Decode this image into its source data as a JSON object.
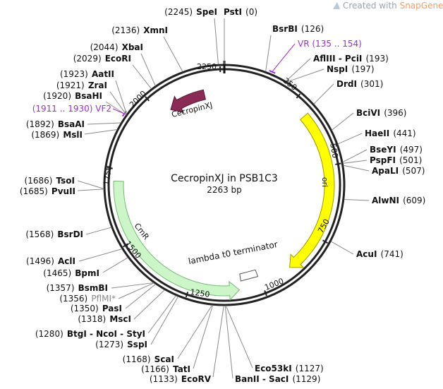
{
  "plasmid": {
    "name": "CecropinXJ in PSB1C3",
    "size_label": "2263 bp",
    "length": 2263
  },
  "watermark": {
    "prefix": "Created with ",
    "brand": "SnapGene™"
  },
  "colors": {
    "backbone": "#222222",
    "cecropin": "#8b2a55",
    "ori": "#ffff00",
    "cmr": "#ccf5c8",
    "terminator": "#ffffff",
    "primer": "#9b30d0",
    "brand": "#ff7f3f"
  },
  "features": [
    {
      "name": "CecropinXJ",
      "start": 2185,
      "end": 2040,
      "type": "cds"
    },
    {
      "name": "ori",
      "start": 310,
      "end": 890,
      "type": "rep_origin"
    },
    {
      "name": "CmR",
      "start": 1710,
      "end": 1080,
      "type": "cds"
    },
    {
      "name": "lambda t0 terminator",
      "start": 1005,
      "end": 1070,
      "type": "terminator"
    }
  ],
  "primers": [
    {
      "name": "VR",
      "range": "(135 .. 154)"
    },
    {
      "name": "VF2",
      "range": "(1911 .. 1930)"
    }
  ],
  "ticks": [
    {
      "label": "250",
      "pos": 250
    },
    {
      "label": "500",
      "pos": 500
    },
    {
      "label": "750",
      "pos": 750
    },
    {
      "label": "1000",
      "pos": 1000
    },
    {
      "label": "1250",
      "pos": 1250
    },
    {
      "label": "1500",
      "pos": 1500
    },
    {
      "label": "1750",
      "pos": 1750
    },
    {
      "label": "2000",
      "pos": 2000
    },
    {
      "label": "2250",
      "pos": 2250
    }
  ],
  "sites": [
    {
      "name": "PstI",
      "num": "(0)",
      "pos": 0
    },
    {
      "name": "SpeI",
      "num": "(2245)",
      "pos": 2245
    },
    {
      "name": "XmnI",
      "num": "(2136)",
      "pos": 2136
    },
    {
      "name": "XbaI",
      "num": "(2044)",
      "pos": 2044
    },
    {
      "name": "EcoRI",
      "num": "(2029)",
      "pos": 2029
    },
    {
      "name": "AatII",
      "num": "(1923)",
      "pos": 1923
    },
    {
      "name": "ZraI",
      "num": "(1921)",
      "pos": 1921
    },
    {
      "name": "BsaHI",
      "num": "(1920)",
      "pos": 1920
    },
    {
      "name": "BsaAI",
      "num": "(1892)",
      "pos": 1892
    },
    {
      "name": "MslI",
      "num": "(1869)",
      "pos": 1869
    },
    {
      "name": "TsoI",
      "num": "(1686)",
      "pos": 1686
    },
    {
      "name": "PvuII",
      "num": "(1685)",
      "pos": 1685
    },
    {
      "name": "BsrDI",
      "num": "(1568)",
      "pos": 1568
    },
    {
      "name": "AclI",
      "num": "(1496)",
      "pos": 1496
    },
    {
      "name": "BpmI",
      "num": "(1465)",
      "pos": 1465
    },
    {
      "name": "BsmBI",
      "num": "(1357)",
      "pos": 1357
    },
    {
      "name": "PflMI*",
      "num": "(1356)",
      "pos": 1356
    },
    {
      "name": "PasI",
      "num": "(1350)",
      "pos": 1350
    },
    {
      "name": "MscI",
      "num": "(1318)",
      "pos": 1318
    },
    {
      "name": "BtgI - NcoI - StyI",
      "num": "(1280)",
      "pos": 1280
    },
    {
      "name": "SspI",
      "num": "(1273)",
      "pos": 1273
    },
    {
      "name": "ScaI",
      "num": "(1168)",
      "pos": 1168
    },
    {
      "name": "TatI",
      "num": "(1166)",
      "pos": 1166
    },
    {
      "name": "EcoRV",
      "num": "(1133)",
      "pos": 1133
    },
    {
      "name": "BsrBI",
      "num": "(126)",
      "pos": 126
    },
    {
      "name": "AflIII - PciI",
      "num": "(193)",
      "pos": 193
    },
    {
      "name": "NspI",
      "num": "(197)",
      "pos": 197
    },
    {
      "name": "DrdI",
      "num": "(301)",
      "pos": 301
    },
    {
      "name": "BciVI",
      "num": "(396)",
      "pos": 396
    },
    {
      "name": "HaeII",
      "num": "(441)",
      "pos": 441
    },
    {
      "name": "BseYI",
      "num": "(497)",
      "pos": 497
    },
    {
      "name": "PspFI",
      "num": "(501)",
      "pos": 501
    },
    {
      "name": "ApaLI",
      "num": "(507)",
      "pos": 507
    },
    {
      "name": "AlwNI",
      "num": "(609)",
      "pos": 609
    },
    {
      "name": "AcuI",
      "num": "(741)",
      "pos": 741
    },
    {
      "name": "Eco53kI",
      "num": "(1127)",
      "pos": 1127
    },
    {
      "name": "BanII - SacI",
      "num": "(1129)",
      "pos": 1129
    }
  ]
}
